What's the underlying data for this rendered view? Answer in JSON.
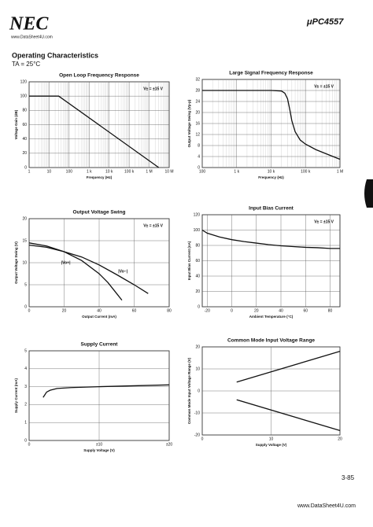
{
  "header": {
    "logo": "NEC",
    "site": "www.DataSheet4U.com",
    "part": "μPC4557",
    "section": "Operating Characteristics",
    "condition": "TA = 25°C"
  },
  "chart_data": [
    {
      "type": "line",
      "title": "Open Loop Frequency Response",
      "x_label": "Frequency (Hz)",
      "y_label": "Voltage Gain (dB)",
      "annotation": "V± = ±15 V",
      "log_x": true,
      "xlim": [
        1,
        10000000
      ],
      "xticks": [
        1,
        10,
        100,
        {
          "value": 1000,
          "label": "1 k"
        },
        {
          "value": 10000,
          "label": "10 k"
        },
        {
          "value": 100000,
          "label": "100 k"
        },
        {
          "value": 1000000,
          "label": "1 M"
        },
        {
          "value": 10000000,
          "label": "10 M"
        }
      ],
      "ylim": [
        0,
        120
      ],
      "yticks": [
        0,
        20,
        40,
        60,
        80,
        100,
        120
      ],
      "series": [
        {
          "color": "#111111",
          "x": [
            1,
            30,
            3000000
          ],
          "values": [
            100,
            100,
            0
          ]
        }
      ]
    },
    {
      "type": "line",
      "title": "Large Signal Frequency Response",
      "x_label": "Frequency (Hz)",
      "y_label": "Output Voltage Swing (Vp-p)",
      "annotation": "V± = ±15 V",
      "log_x": true,
      "xlim": [
        100,
        1000000
      ],
      "xticks": [
        100,
        {
          "value": 1000,
          "label": "1 k"
        },
        {
          "value": 10000,
          "label": "10 k"
        },
        {
          "value": 100000,
          "label": "100 k"
        },
        {
          "value": 1000000,
          "label": "1 M"
        }
      ],
      "ylim": [
        0,
        32
      ],
      "yticks": [
        0,
        4,
        8,
        12,
        16,
        20,
        24,
        28,
        32
      ],
      "series": [
        {
          "color": "#111111",
          "x": [
            100,
            1000,
            10000,
            20000,
            25000,
            30000,
            35000,
            40000,
            50000,
            70000,
            100000,
            200000,
            500000,
            1000000
          ],
          "values": [
            28,
            28,
            28,
            27.8,
            27,
            25,
            21,
            17,
            13,
            10,
            8.5,
            6.5,
            4.5,
            3
          ]
        }
      ]
    },
    {
      "type": "line",
      "title": "Output Voltage Swing",
      "x_label": "Output Current (mA)",
      "y_label": "Output Voltage Swing (V)",
      "annotation": "V± = ±15 V",
      "log_x": false,
      "xlim": [
        0,
        80
      ],
      "xticks": [
        0,
        20,
        40,
        60,
        80
      ],
      "ylim": [
        0,
        20
      ],
      "yticks": [
        0,
        5,
        10,
        15,
        20
      ],
      "series": [
        {
          "name": "|Vo−|",
          "color": "#111111",
          "x": [
            0,
            10,
            20,
            30,
            40,
            50,
            60,
            68
          ],
          "values": [
            14,
            13.5,
            12.5,
            11.3,
            9.5,
            7.3,
            5,
            3
          ]
        },
        {
          "name": "|Vo+|",
          "color": "#111111",
          "x": [
            0,
            10,
            20,
            30,
            40,
            45,
            50,
            53
          ],
          "values": [
            14.5,
            13.8,
            12.5,
            10.5,
            7.5,
            5.5,
            3,
            1.5
          ]
        }
      ]
    },
    {
      "type": "line",
      "title": "Input Bias Current",
      "x_label": "Ambient Temperature (°C)",
      "y_label": "Input Bias Current (nA)",
      "annotation": "V± = ±15 V",
      "log_x": false,
      "xlim": [
        -24,
        88
      ],
      "xticks": [
        -20,
        0,
        20,
        40,
        60,
        80
      ],
      "ylim": [
        0,
        120
      ],
      "yticks": [
        0,
        20,
        40,
        60,
        80,
        100,
        120
      ],
      "series": [
        {
          "color": "#111111",
          "x": [
            -24,
            -20,
            -10,
            0,
            10,
            20,
            30,
            40,
            50,
            60,
            70,
            80,
            88
          ],
          "values": [
            100,
            96,
            91,
            87.5,
            85,
            83,
            81,
            79.5,
            78.5,
            77.5,
            77,
            76,
            76
          ]
        }
      ]
    },
    {
      "type": "line",
      "title": "Supply Current",
      "x_label": "Supply Voltage (V)",
      "y_label": "Supply Current (mA)",
      "log_x": false,
      "xlim": [
        0,
        20
      ],
      "xticks": [
        0,
        {
          "value": 10,
          "label": "±10"
        },
        {
          "value": 20,
          "label": "±20"
        }
      ],
      "ylim": [
        0,
        5
      ],
      "yticks": [
        0,
        1,
        2,
        3,
        4,
        5
      ],
      "series": [
        {
          "color": "#111111",
          "x": [
            2,
            2.5,
            3,
            4,
            6,
            10,
            15,
            20
          ],
          "values": [
            2.4,
            2.7,
            2.8,
            2.9,
            2.95,
            3.0,
            3.05,
            3.1
          ]
        }
      ]
    },
    {
      "type": "line",
      "title": "Common Mode Input Voltage Range",
      "x_label": "Supply Voltage (V)",
      "y_label": "Common Mode Input Voltage Range (V)",
      "log_x": false,
      "xlim": [
        0,
        20
      ],
      "xticks": [
        0,
        10,
        20
      ],
      "ylim": [
        -20,
        20
      ],
      "yticks": [
        -20,
        -10,
        0,
        10,
        20
      ],
      "series": [
        {
          "color": "#111111",
          "x": [
            5,
            20
          ],
          "values": [
            4,
            18
          ]
        },
        {
          "color": "#111111",
          "x": [
            5,
            20
          ],
          "values": [
            -4,
            -18
          ]
        }
      ]
    }
  ],
  "footer": {
    "page": "3-85",
    "site": "www.DataSheet4U.com"
  }
}
